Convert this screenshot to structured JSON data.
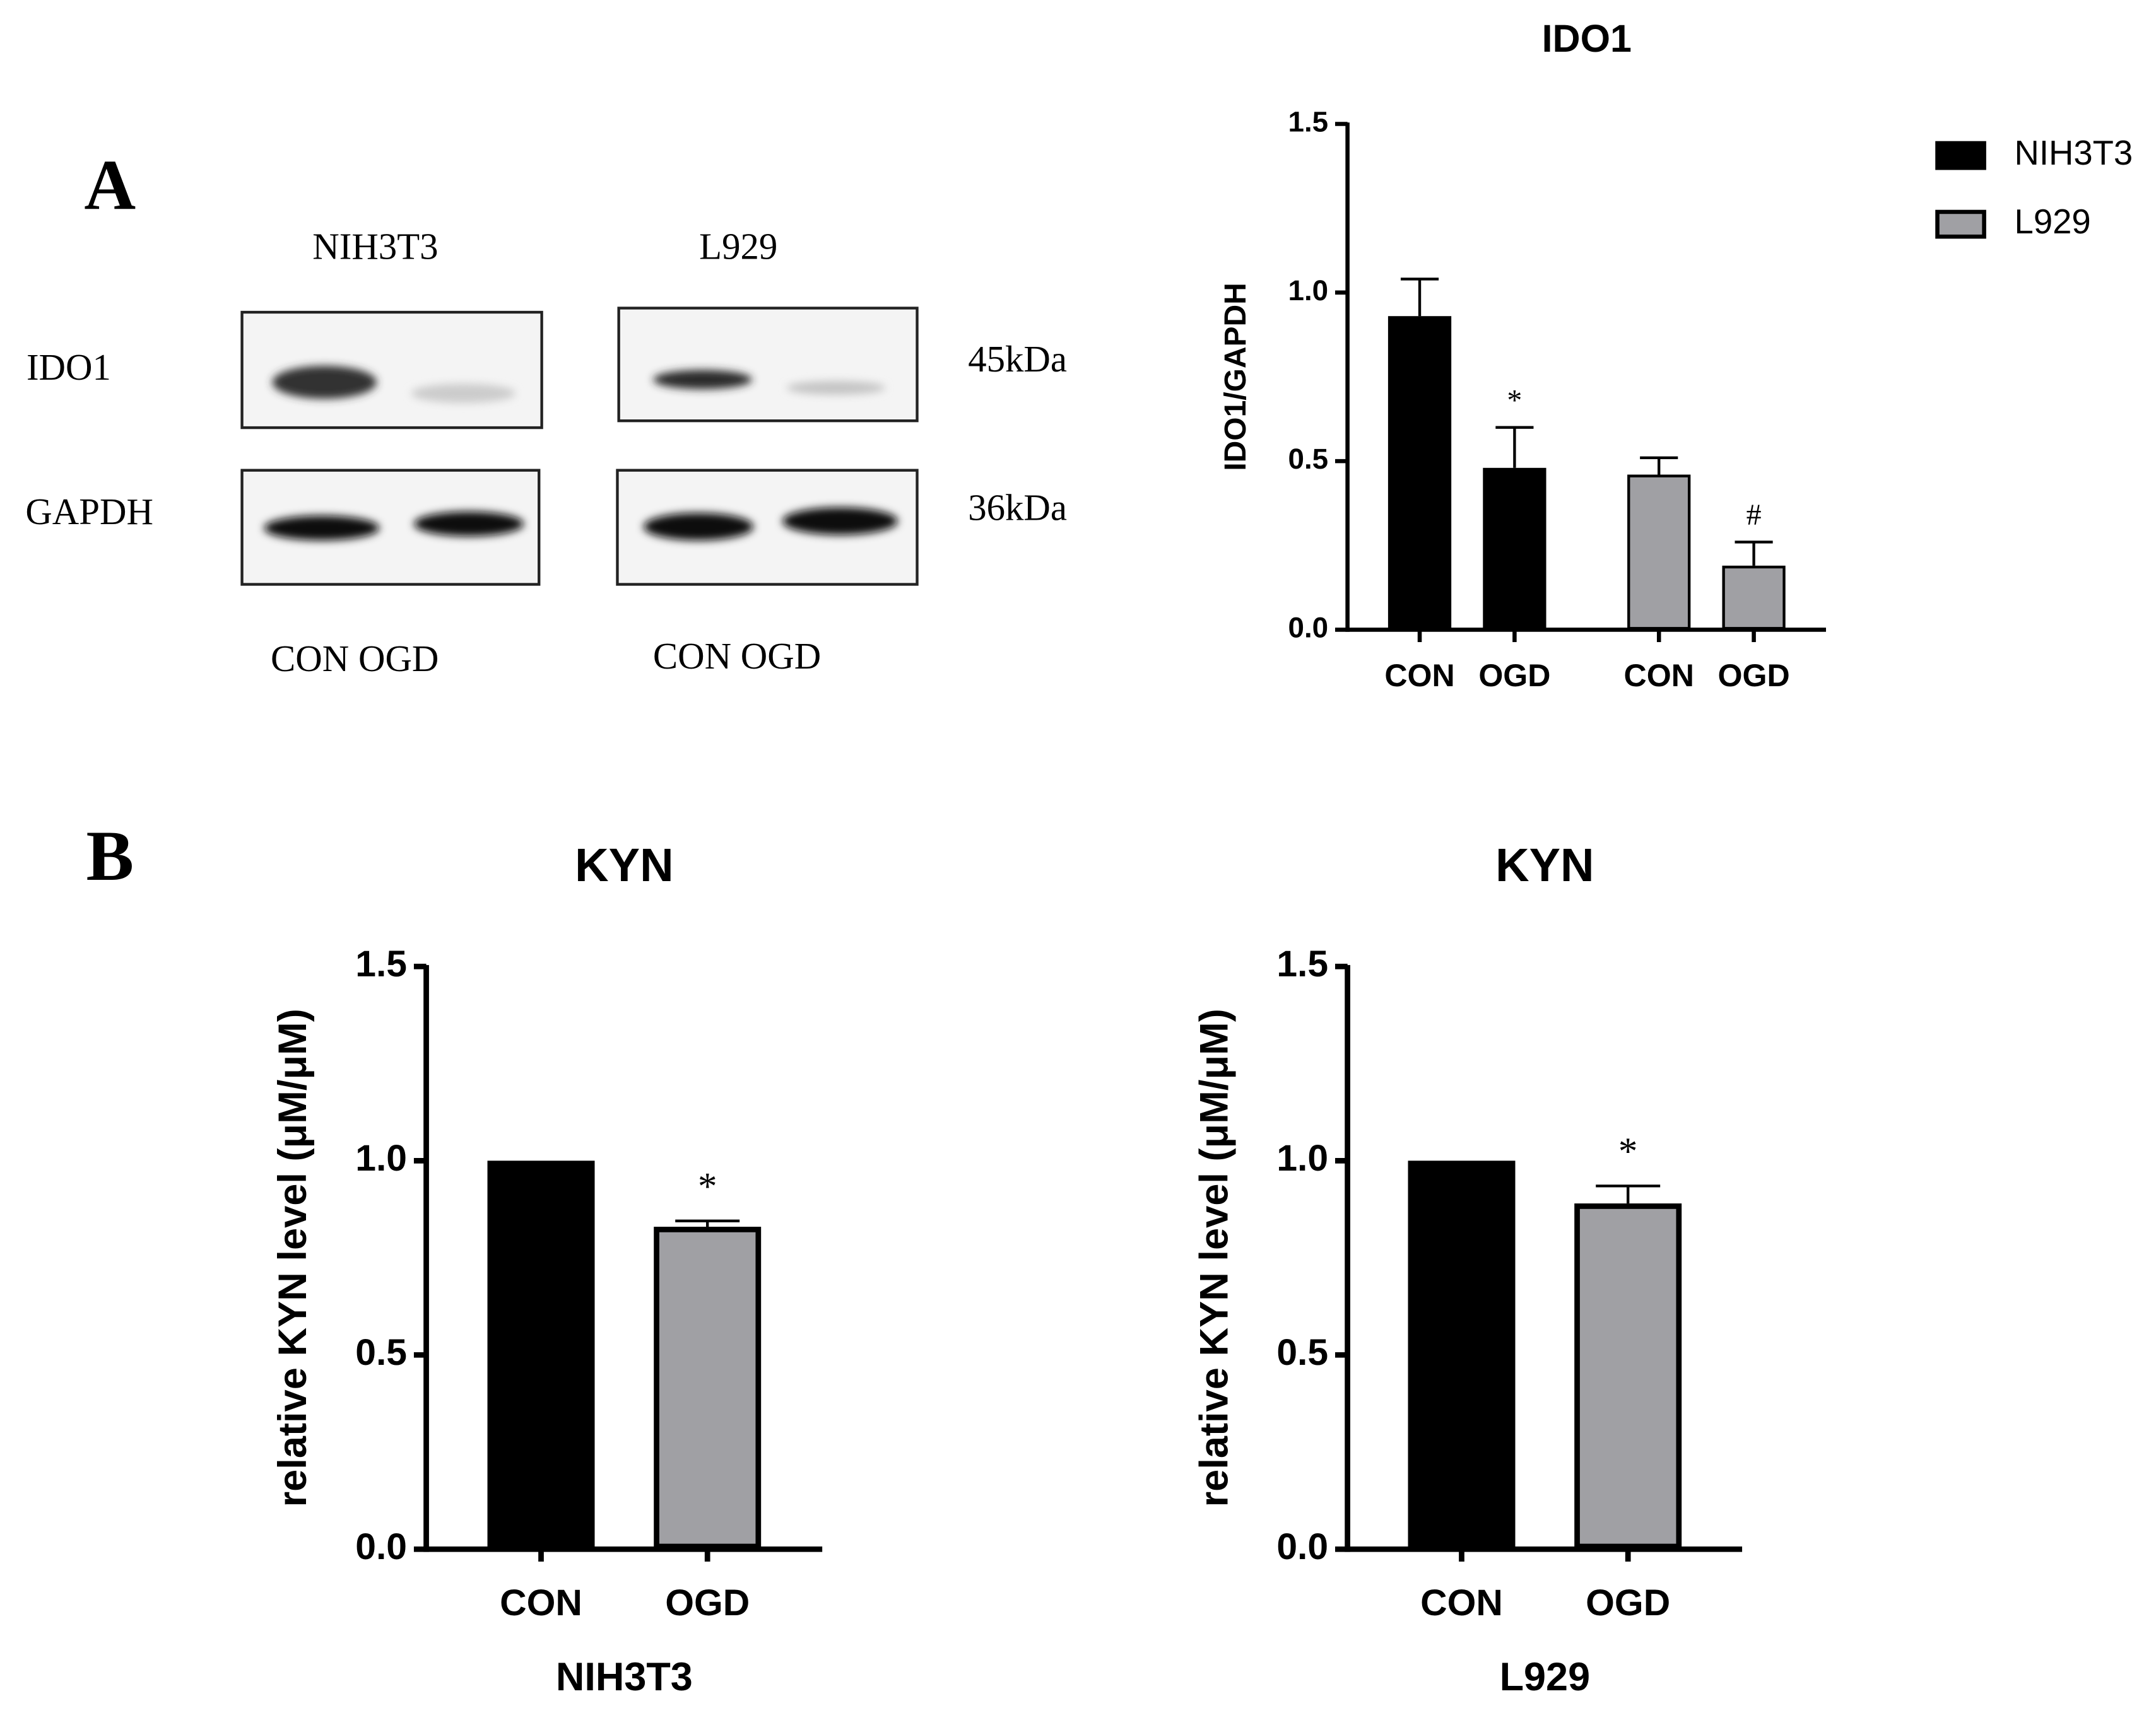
{
  "panel_labels": [
    "A",
    "B"
  ],
  "blot": {
    "lanes": [
      "NIH3T3",
      "L929"
    ],
    "proteins": [
      "IDO1",
      "GAPDH"
    ],
    "sizes": [
      "45kDa",
      "36kDa"
    ],
    "lane_labels": [
      "CON OGD",
      "CON OGD"
    ]
  },
  "chart_data": [
    {
      "type": "bar",
      "title": "IDO1",
      "ylabel": "IDO1/GAPDH",
      "categories": [
        "CON",
        "OGD"
      ],
      "series": [
        {
          "name": "NIH3T3",
          "color": "#000000",
          "values": [
            0.93,
            0.48
          ],
          "errors": [
            0.11,
            0.12
          ],
          "annotations": [
            null,
            "*"
          ]
        },
        {
          "name": "L929",
          "color": "#a0a0a4",
          "values": [
            0.46,
            0.19
          ],
          "errors": [
            0.05,
            0.07
          ],
          "annotations": [
            null,
            "#"
          ]
        }
      ],
      "ylim": [
        0,
        1.5
      ],
      "yticks": [
        {
          "value": 0,
          "label": "0.0"
        },
        0.5,
        {
          "value": 1,
          "label": "1.0"
        },
        1.5
      ],
      "legend": "right"
    },
    {
      "type": "bar",
      "title": "KYN",
      "xlabel": "NIH3T3",
      "ylabel": "relative KYN level (μM/μM)",
      "categories": [
        "CON",
        "OGD"
      ],
      "series": [
        {
          "colors": [
            "#000000",
            "#a0a0a4"
          ],
          "values": [
            1.0,
            0.83
          ],
          "errors": [
            null,
            0.015
          ],
          "annotations": [
            null,
            "*"
          ]
        }
      ],
      "ylim": [
        0,
        1.5
      ],
      "yticks": [
        {
          "value": 0,
          "label": "0.0"
        },
        0.5,
        {
          "value": 1,
          "label": "1.0"
        },
        1.5
      ]
    },
    {
      "type": "bar",
      "title": "KYN",
      "xlabel": "L929",
      "ylabel": "relative KYN level (μM/μM)",
      "categories": [
        "CON",
        "OGD"
      ],
      "series": [
        {
          "colors": [
            "#000000",
            "#a0a0a4"
          ],
          "values": [
            1.0,
            0.89
          ],
          "errors": [
            null,
            0.045
          ],
          "annotations": [
            null,
            "*"
          ]
        }
      ],
      "ylim": [
        0,
        1.5
      ],
      "yticks": [
        {
          "value": 0,
          "label": "0.0"
        },
        0.5,
        {
          "value": 1,
          "label": "1.0"
        },
        1.5
      ]
    }
  ]
}
